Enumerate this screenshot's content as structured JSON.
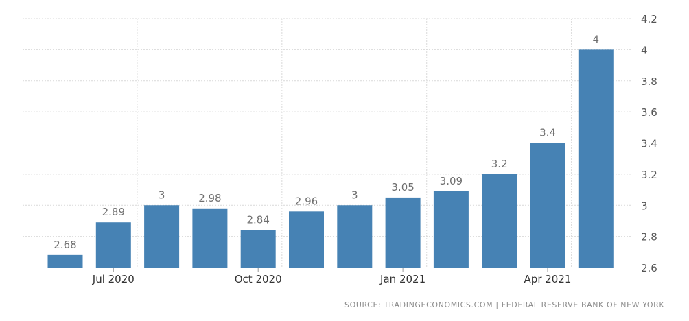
{
  "chart_data": {
    "type": "bar",
    "categories": [
      "2020-06",
      "2020-07",
      "2020-08",
      "2020-09",
      "2020-10",
      "2020-11",
      "2020-12",
      "2021-01",
      "2021-02",
      "2021-03",
      "2021-04",
      "2021-05"
    ],
    "values": [
      2.68,
      2.89,
      3,
      2.98,
      2.84,
      2.96,
      3,
      3.05,
      3.09,
      3.2,
      3.4,
      4
    ],
    "data_labels": [
      "2.68",
      "2.89",
      "3",
      "2.98",
      "2.84",
      "2.96",
      "3",
      "3.05",
      "3.09",
      "3.2",
      "3.4",
      "4"
    ],
    "x_ticks": [
      {
        "category": "2020-07",
        "label": "Jul 2020"
      },
      {
        "category": "2020-10",
        "label": "Oct 2020"
      },
      {
        "category": "2021-01",
        "label": "Jan 2021"
      },
      {
        "category": "2021-04",
        "label": "Apr 2021"
      }
    ],
    "y_ticks": [
      2.6,
      2.8,
      3,
      3.2,
      3.4,
      3.6,
      3.8,
      4,
      4.2
    ],
    "y_tick_labels": [
      "2.6",
      "2.8",
      "3",
      "3.2",
      "3.4",
      "3.6",
      "3.8",
      "4",
      "4.2"
    ],
    "ylim": [
      2.6,
      4.2
    ],
    "y_axis_side": "right",
    "grid": true,
    "legend": "none",
    "title": "",
    "xlabel": "",
    "ylabel": "",
    "colors": {
      "bar": "#4682b4",
      "grid": "#d9d9d9",
      "text": "#555555",
      "label": "#6f6f6f"
    }
  },
  "source": {
    "left": "SOURCE: TRADINGECONOMICS.COM",
    "separator": "|",
    "right": "FEDERAL RESERVE BANK OF NEW YORK"
  }
}
